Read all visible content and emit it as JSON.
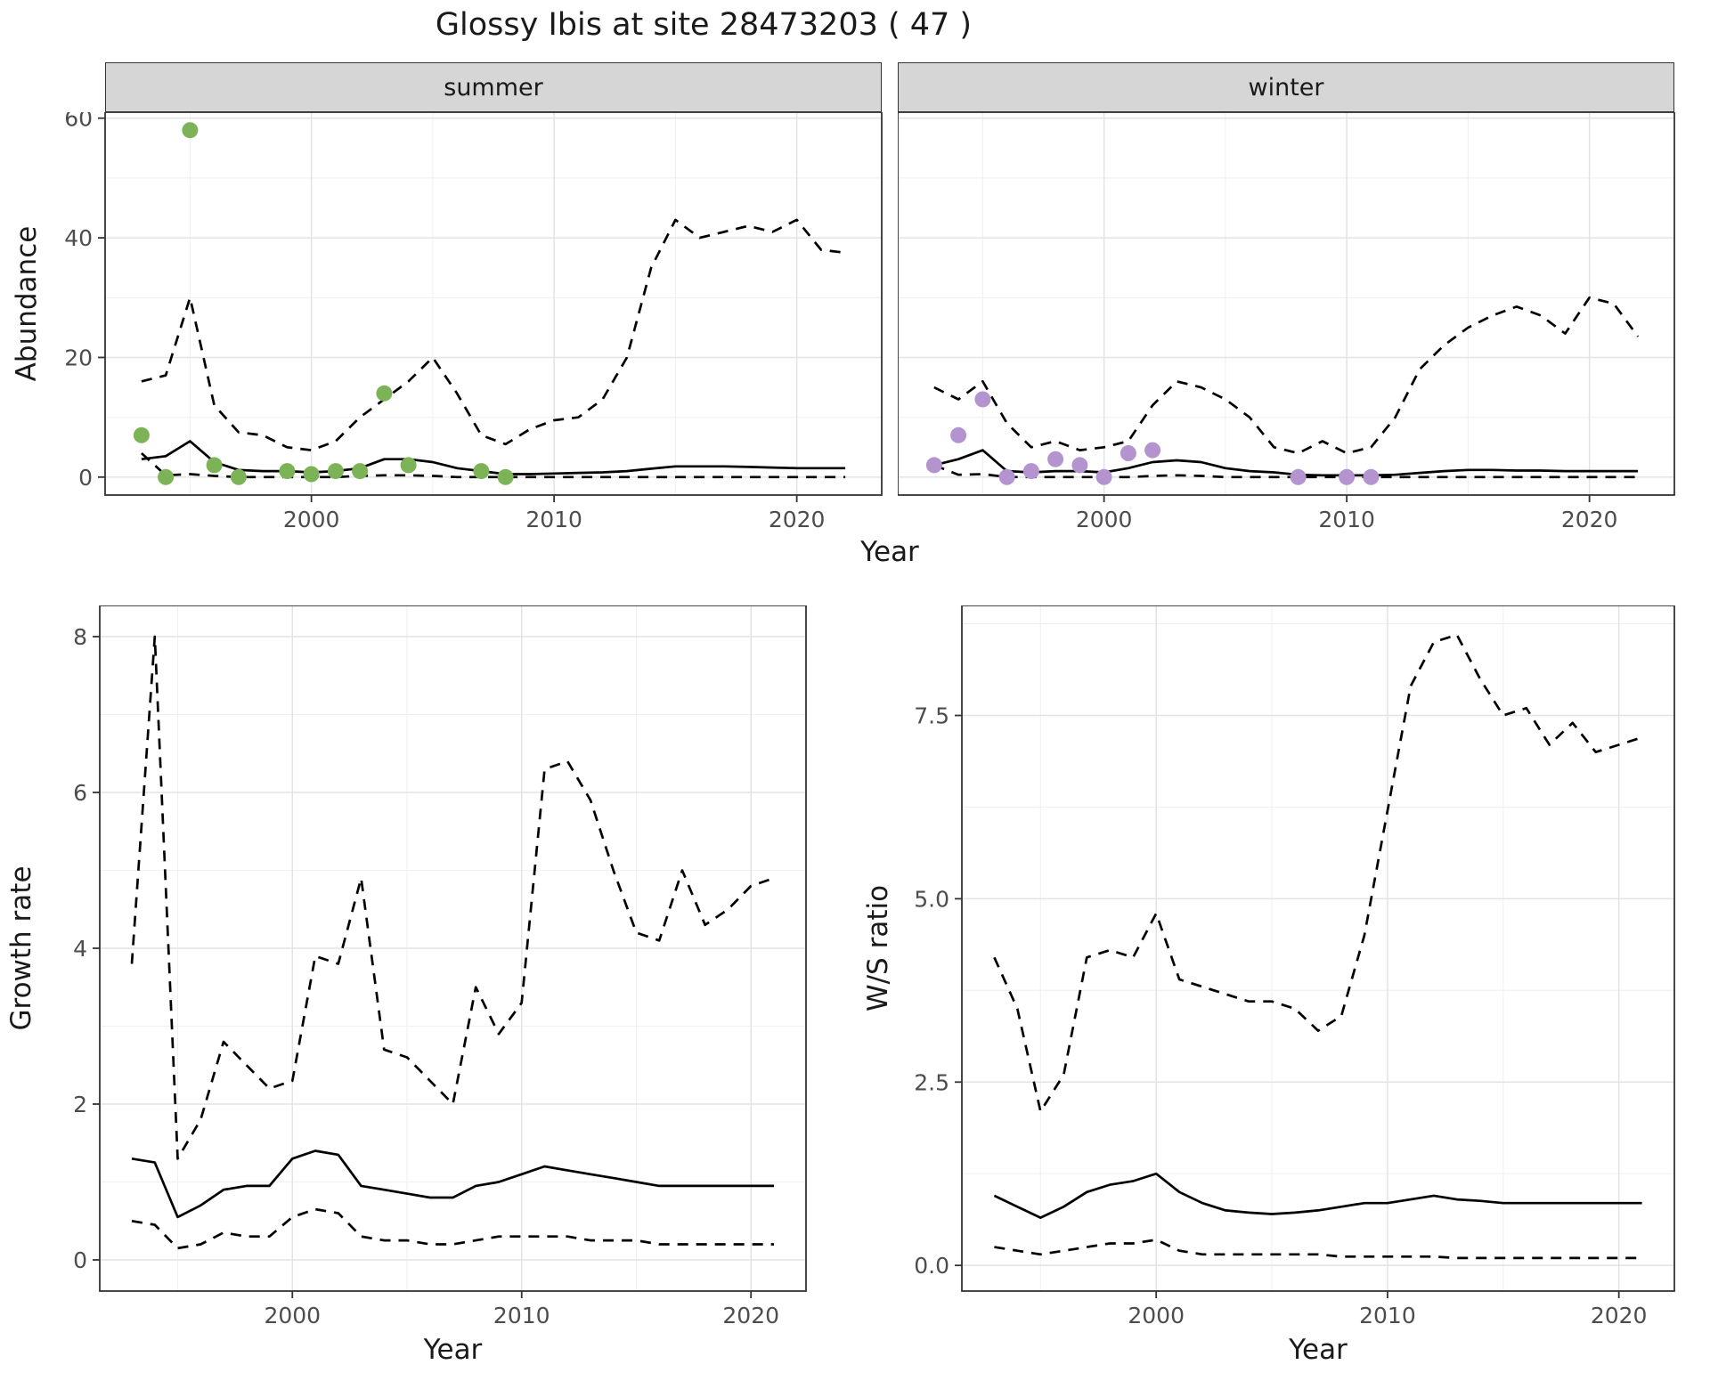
{
  "title": "Glossy Ibis at site 28473203 ( 47 )",
  "colors": {
    "summer_points": "#7db357",
    "winter_points": "#b494cf",
    "line": "#000000",
    "grid_major": "#e3e3e3",
    "grid_minor": "#f0f0f0",
    "panel_border": "#333333",
    "strip_bg": "#d6d6d6",
    "tick_text": "#4d4d4d"
  },
  "chart_data": [
    {
      "id": "abundance-summer",
      "type": "line+scatter",
      "facet": "summer",
      "xlabel": "Year",
      "ylabel": "Abundance",
      "xlim": [
        1991.5,
        2023.5
      ],
      "ylim": [
        -3,
        61
      ],
      "grid": true,
      "legend": "none",
      "xticks": {
        "values": [
          2000,
          2010,
          2020
        ],
        "labels": [
          "2000",
          "2010",
          "2020"
        ]
      },
      "xminor": [
        1995,
        2005,
        2015
      ],
      "yticks": {
        "values": [
          0,
          20,
          40,
          60
        ],
        "labels": [
          "0",
          "20",
          "40",
          "60"
        ]
      },
      "yminor": [
        10,
        30,
        50
      ],
      "x": [
        1993,
        1994,
        1995,
        1996,
        1997,
        1998,
        1999,
        2000,
        2001,
        2002,
        2003,
        2004,
        2005,
        2006,
        2007,
        2008,
        2009,
        2010,
        2011,
        2012,
        2013,
        2014,
        2015,
        2016,
        2017,
        2018,
        2019,
        2020,
        2021,
        2022
      ],
      "series": [
        {
          "name": "estimate",
          "dash": false,
          "values": [
            3.0,
            3.5,
            6.0,
            2.5,
            1.2,
            1.0,
            1.0,
            0.8,
            1.0,
            1.5,
            3.0,
            3.0,
            2.5,
            1.5,
            1.0,
            0.5,
            0.5,
            0.6,
            0.7,
            0.8,
            1.0,
            1.4,
            1.8,
            1.8,
            1.8,
            1.7,
            1.6,
            1.5,
            1.5,
            1.5
          ]
        },
        {
          "name": "upper-ci",
          "dash": true,
          "values": [
            16,
            17,
            30,
            12,
            7.5,
            7,
            5,
            4.5,
            6,
            10,
            13,
            16,
            20,
            14,
            7,
            5.5,
            8,
            9.5,
            10,
            13,
            20,
            35,
            43,
            40,
            41,
            42,
            41,
            43,
            38,
            37.5
          ]
        },
        {
          "name": "lower-ci",
          "dash": true,
          "values": [
            4,
            0.3,
            0.5,
            0.2,
            0,
            0,
            0,
            0,
            0,
            0.2,
            0.3,
            0.3,
            0.2,
            0,
            0,
            0,
            0,
            0,
            0,
            0,
            0,
            0,
            0,
            0,
            0,
            0,
            0,
            0,
            0,
            0
          ]
        }
      ],
      "points": {
        "name": "summer-observations",
        "color": "#7db357",
        "xy": [
          [
            1993,
            7
          ],
          [
            1994,
            0
          ],
          [
            1995,
            58
          ],
          [
            1996,
            2
          ],
          [
            1997,
            0
          ],
          [
            1999,
            1
          ],
          [
            2000,
            0.5
          ],
          [
            2001,
            1
          ],
          [
            2002,
            1
          ],
          [
            2003,
            14
          ],
          [
            2004,
            2
          ],
          [
            2007,
            1
          ],
          [
            2008,
            0
          ]
        ]
      }
    },
    {
      "id": "abundance-winter",
      "type": "line+scatter",
      "facet": "winter",
      "xlabel": "Year",
      "ylabel": "Abundance",
      "xlim": [
        1991.5,
        2023.5
      ],
      "ylim": [
        -3,
        61
      ],
      "grid": true,
      "legend": "none",
      "xticks": {
        "values": [
          2000,
          2010,
          2020
        ],
        "labels": [
          "2000",
          "2010",
          "2020"
        ]
      },
      "xminor": [
        1995,
        2005,
        2015
      ],
      "yticks": {
        "values": [
          0,
          20,
          40,
          60
        ],
        "labels": [
          "0",
          "20",
          "40",
          "60"
        ]
      },
      "yminor": [
        10,
        30,
        50
      ],
      "x": [
        1993,
        1994,
        1995,
        1996,
        1997,
        1998,
        1999,
        2000,
        2001,
        2002,
        2003,
        2004,
        2005,
        2006,
        2007,
        2008,
        2009,
        2010,
        2011,
        2012,
        2013,
        2014,
        2015,
        2016,
        2017,
        2018,
        2019,
        2020,
        2021,
        2022
      ],
      "series": [
        {
          "name": "estimate",
          "dash": false,
          "values": [
            2.0,
            3.0,
            4.5,
            1.0,
            0.8,
            1.0,
            1.0,
            0.8,
            1.5,
            2.5,
            2.8,
            2.5,
            1.5,
            1.0,
            0.8,
            0.4,
            0.3,
            0.3,
            0.3,
            0.4,
            0.7,
            1.0,
            1.2,
            1.2,
            1.1,
            1.1,
            1.0,
            1.0,
            1.0,
            1.0
          ]
        },
        {
          "name": "upper-ci",
          "dash": true,
          "values": [
            15,
            13,
            16,
            9,
            5,
            6,
            4.5,
            5,
            6,
            12,
            16,
            15,
            13,
            10,
            5,
            4,
            6,
            4,
            5,
            10,
            18,
            22,
            25,
            27,
            28.5,
            27,
            24,
            30,
            29,
            23.5
          ]
        },
        {
          "name": "lower-ci",
          "dash": true,
          "values": [
            2,
            0.4,
            0.5,
            0,
            0,
            0,
            0,
            0,
            0,
            0.2,
            0.3,
            0.2,
            0,
            0,
            0,
            0,
            0,
            0,
            0,
            0,
            0,
            0,
            0,
            0,
            0,
            0,
            0,
            0,
            0,
            0
          ]
        }
      ],
      "points": {
        "name": "winter-observations",
        "color": "#b494cf",
        "xy": [
          [
            1993,
            2
          ],
          [
            1994,
            7
          ],
          [
            1995,
            13
          ],
          [
            1996,
            0
          ],
          [
            1997,
            1
          ],
          [
            1998,
            3
          ],
          [
            1999,
            2
          ],
          [
            2000,
            0
          ],
          [
            2001,
            4
          ],
          [
            2002,
            4.5
          ],
          [
            2008,
            0
          ],
          [
            2010,
            0
          ],
          [
            2011,
            0
          ]
        ]
      }
    },
    {
      "id": "growth-rate",
      "type": "line",
      "facet": "",
      "xlabel": "Year",
      "ylabel": "Growth rate",
      "xlim": [
        1991.6,
        2022.4
      ],
      "ylim": [
        -0.4,
        8.4
      ],
      "grid": true,
      "legend": "none",
      "xticks": {
        "values": [
          2000,
          2010,
          2020
        ],
        "labels": [
          "2000",
          "2010",
          "2020"
        ]
      },
      "xminor": [
        1995,
        2005,
        2015
      ],
      "yticks": {
        "values": [
          0,
          2,
          4,
          6,
          8
        ],
        "labels": [
          "0",
          "2",
          "4",
          "6",
          "8"
        ]
      },
      "yminor": [
        1,
        3,
        5,
        7
      ],
      "x": [
        1993,
        1994,
        1995,
        1996,
        1997,
        1998,
        1999,
        2000,
        2001,
        2002,
        2003,
        2004,
        2005,
        2006,
        2007,
        2008,
        2009,
        2010,
        2011,
        2012,
        2013,
        2014,
        2015,
        2016,
        2017,
        2018,
        2019,
        2020,
        2021
      ],
      "series": [
        {
          "name": "estimate",
          "dash": false,
          "values": [
            1.3,
            1.25,
            0.55,
            0.7,
            0.9,
            0.95,
            0.95,
            1.3,
            1.4,
            1.35,
            0.95,
            0.9,
            0.85,
            0.8,
            0.8,
            0.95,
            1.0,
            1.1,
            1.2,
            1.15,
            1.1,
            1.05,
            1.0,
            0.95,
            0.95,
            0.95,
            0.95,
            0.95,
            0.95
          ]
        },
        {
          "name": "upper-ci",
          "dash": true,
          "values": [
            3.8,
            8.0,
            1.3,
            1.8,
            2.8,
            2.5,
            2.2,
            2.3,
            3.9,
            3.8,
            4.9,
            2.7,
            2.6,
            2.3,
            2.0,
            3.5,
            2.9,
            3.3,
            6.3,
            6.4,
            5.9,
            5.0,
            4.2,
            4.1,
            5.0,
            4.3,
            4.5,
            4.8,
            4.9
          ]
        },
        {
          "name": "lower-ci",
          "dash": true,
          "values": [
            0.5,
            0.45,
            0.15,
            0.2,
            0.35,
            0.3,
            0.3,
            0.55,
            0.65,
            0.6,
            0.3,
            0.25,
            0.25,
            0.2,
            0.2,
            0.25,
            0.3,
            0.3,
            0.3,
            0.3,
            0.25,
            0.25,
            0.25,
            0.2,
            0.2,
            0.2,
            0.2,
            0.2,
            0.2
          ]
        }
      ]
    },
    {
      "id": "ws-ratio",
      "type": "line",
      "facet": "",
      "xlabel": "Year",
      "ylabel": "W/S ratio",
      "xlim": [
        1991.6,
        2022.4
      ],
      "ylim": [
        -0.35,
        9.0
      ],
      "grid": true,
      "legend": "none",
      "xticks": {
        "values": [
          2000,
          2010,
          2020
        ],
        "labels": [
          "2000",
          "2010",
          "2020"
        ]
      },
      "xminor": [
        1995,
        2005,
        2015
      ],
      "yticks": {
        "values": [
          0,
          2.5,
          5,
          7.5
        ],
        "labels": [
          "0.0",
          "2.5",
          "5.0",
          "7.5"
        ]
      },
      "yminor": [
        1.25,
        3.75,
        6.25,
        8.75
      ],
      "x": [
        1993,
        1994,
        1995,
        1996,
        1997,
        1998,
        1999,
        2000,
        2001,
        2002,
        2003,
        2004,
        2005,
        2006,
        2007,
        2008,
        2009,
        2010,
        2011,
        2012,
        2013,
        2014,
        2015,
        2016,
        2017,
        2018,
        2019,
        2020,
        2021
      ],
      "series": [
        {
          "name": "estimate",
          "dash": false,
          "values": [
            0.95,
            0.8,
            0.65,
            0.8,
            1.0,
            1.1,
            1.15,
            1.25,
            1.0,
            0.85,
            0.75,
            0.72,
            0.7,
            0.72,
            0.75,
            0.8,
            0.85,
            0.85,
            0.9,
            0.95,
            0.9,
            0.88,
            0.85,
            0.85,
            0.85,
            0.85,
            0.85,
            0.85,
            0.85
          ]
        },
        {
          "name": "upper-ci",
          "dash": true,
          "values": [
            4.2,
            3.5,
            2.1,
            2.6,
            4.2,
            4.3,
            4.2,
            4.8,
            3.9,
            3.8,
            3.7,
            3.6,
            3.6,
            3.5,
            3.2,
            3.4,
            4.5,
            6.2,
            7.9,
            8.5,
            8.6,
            8.0,
            7.5,
            7.6,
            7.1,
            7.4,
            7.0,
            7.1,
            7.2
          ]
        },
        {
          "name": "lower-ci",
          "dash": true,
          "values": [
            0.25,
            0.2,
            0.15,
            0.2,
            0.25,
            0.3,
            0.3,
            0.35,
            0.2,
            0.15,
            0.15,
            0.15,
            0.15,
            0.15,
            0.15,
            0.12,
            0.12,
            0.12,
            0.12,
            0.12,
            0.1,
            0.1,
            0.1,
            0.1,
            0.1,
            0.1,
            0.1,
            0.1,
            0.1
          ]
        }
      ]
    }
  ]
}
